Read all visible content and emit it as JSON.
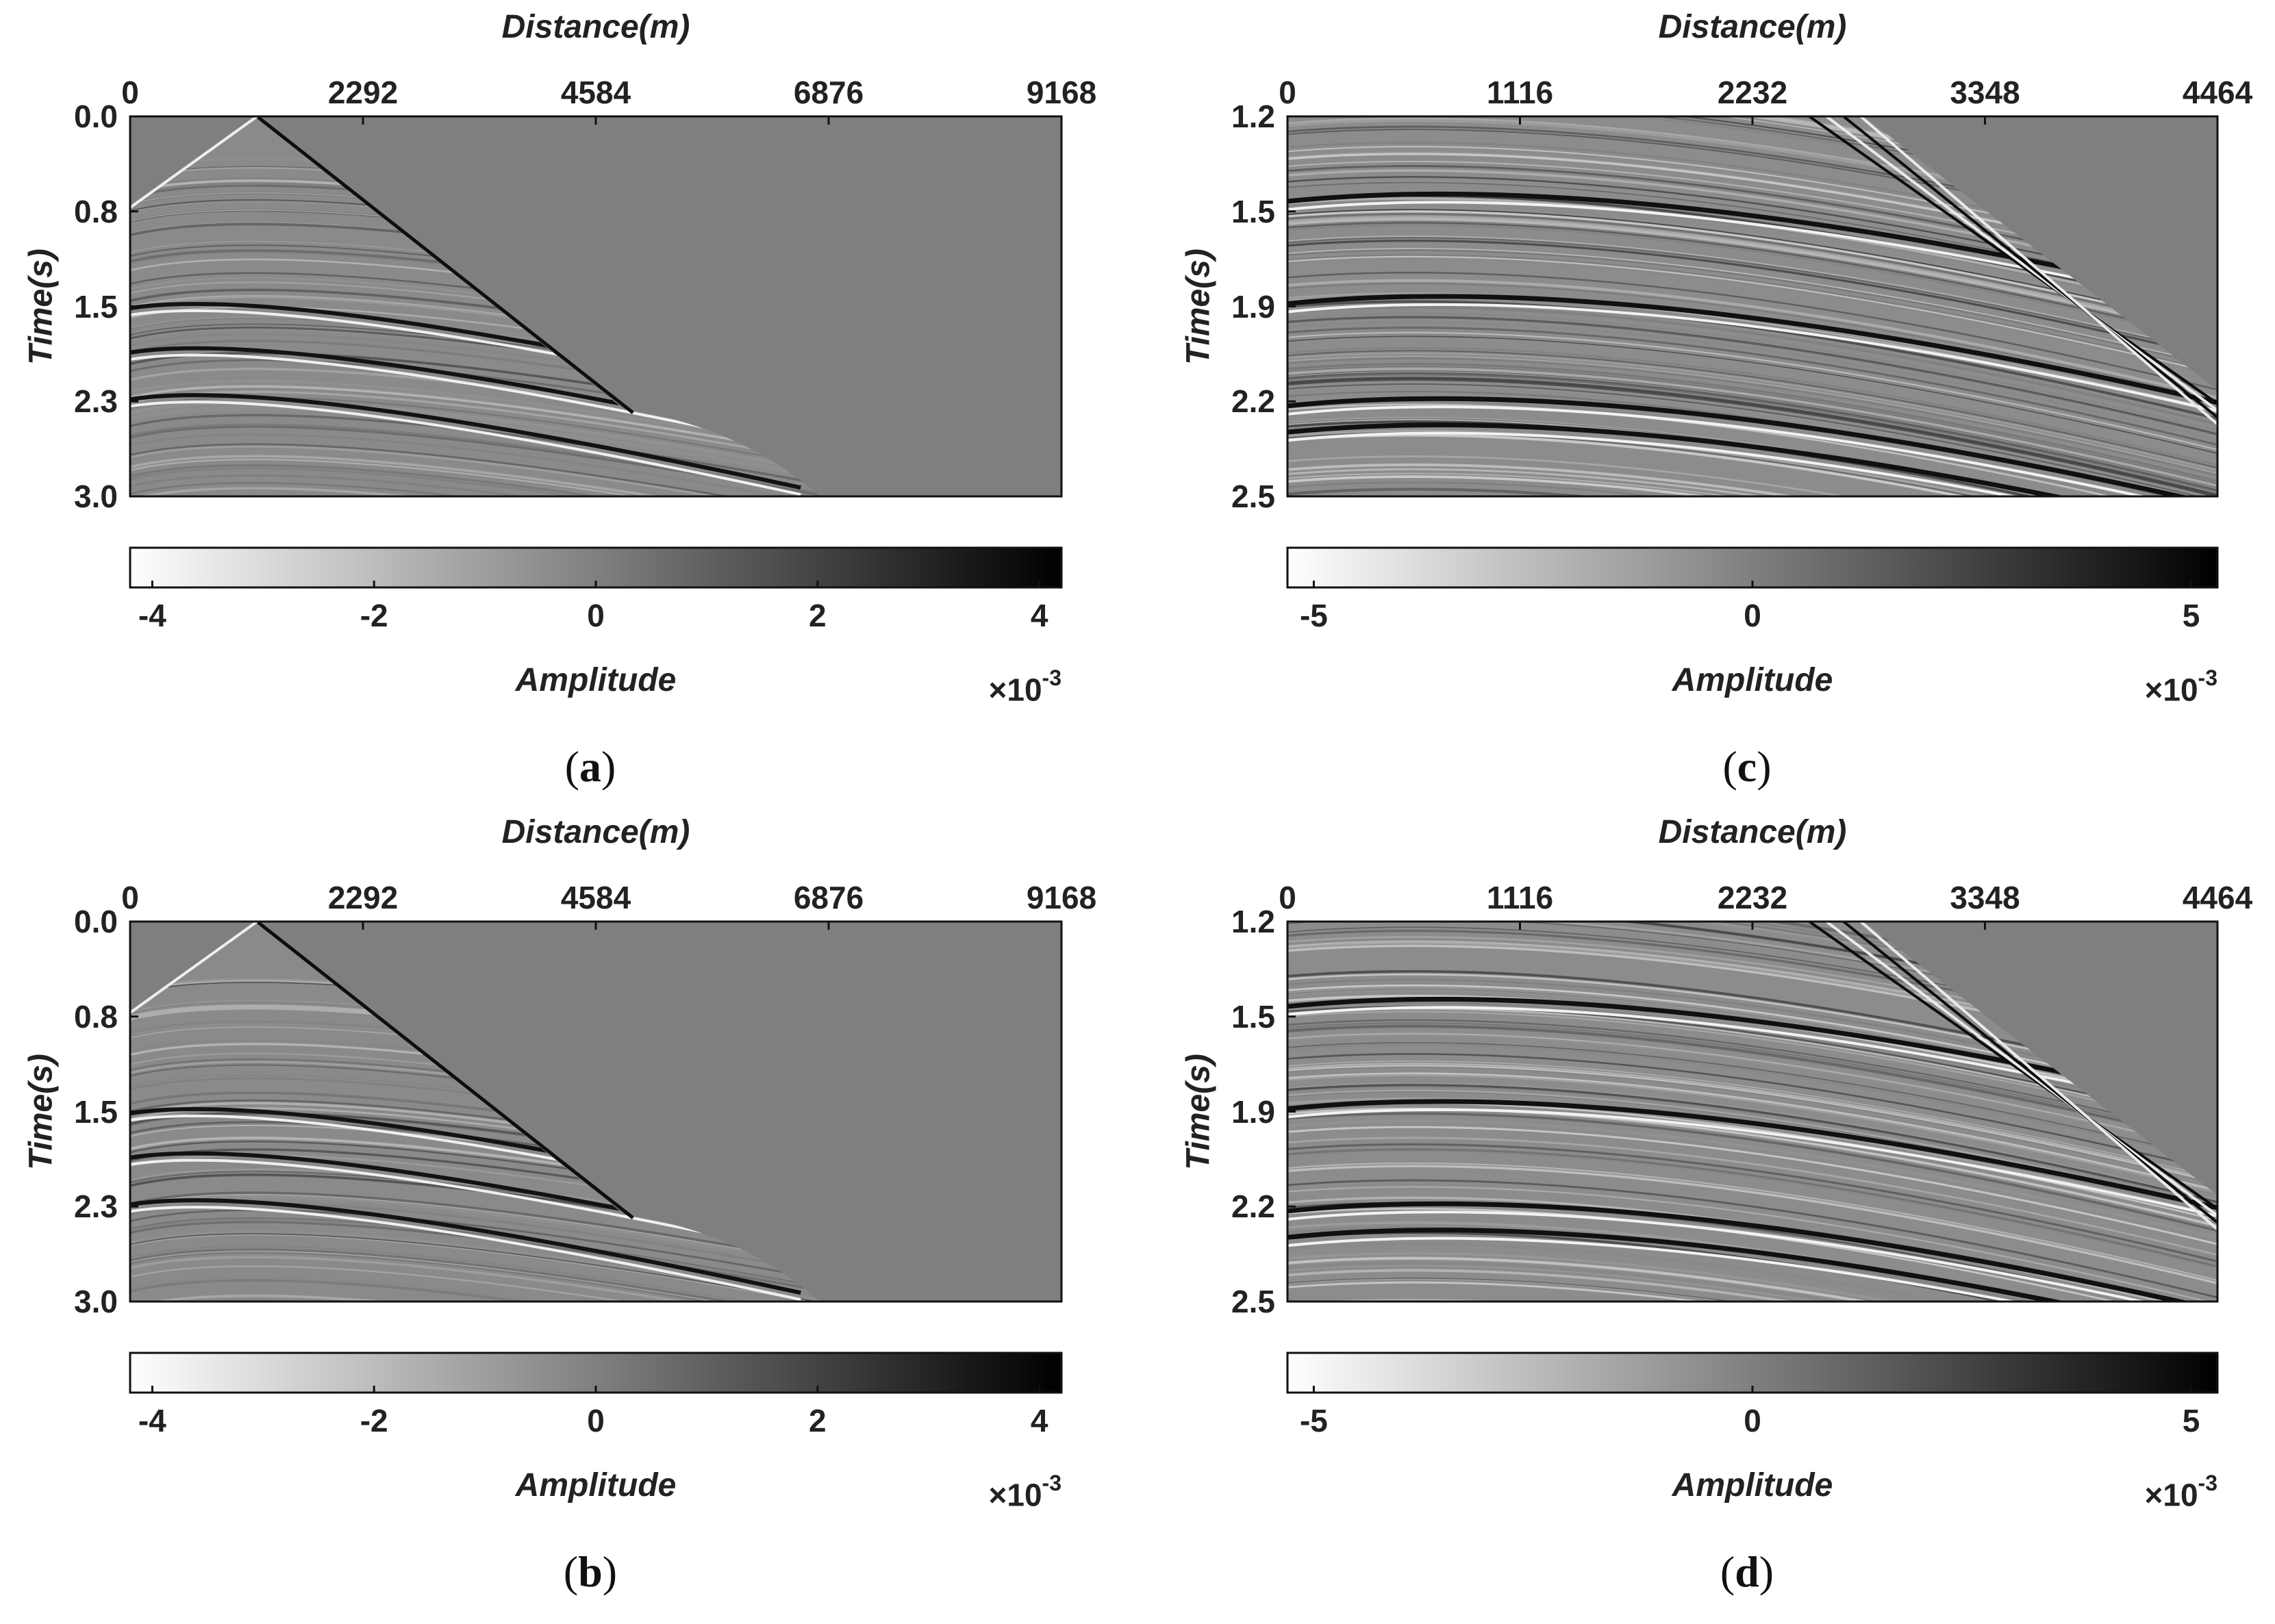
{
  "chart_data": [
    {
      "panel": "a",
      "type": "heatmap",
      "xlabel": "Distance(m)",
      "ylabel": "Time(s)",
      "xlim": [
        0,
        9168
      ],
      "ylim": [
        0.0,
        3.0
      ],
      "xticks": [
        "0",
        "2292",
        "4584",
        "6876",
        "9168"
      ],
      "yticks": [
        "0.0",
        "0.8",
        "1.5",
        "2.3",
        "3.0"
      ],
      "colorbar": {
        "label": "Amplitude",
        "range": [
          -4.2,
          4.2
        ],
        "ticks": [
          "-4",
          "-2",
          "0",
          "2",
          "4"
        ],
        "tick_values": [
          -4,
          -2,
          0,
          2,
          4
        ],
        "scale_base": "×10",
        "scale_exp": "-3"
      },
      "caption": "a",
      "apex_distance": 1250,
      "reflectors": [
        {
          "t0": 1.4,
          "strength": 1.0
        },
        {
          "t0": 1.75,
          "strength": 1.0
        },
        {
          "t0": 2.12,
          "strength": 0.9
        }
      ]
    },
    {
      "panel": "b",
      "type": "heatmap",
      "xlabel": "Distance(m)",
      "ylabel": "Time(s)",
      "xlim": [
        0,
        9168
      ],
      "ylim": [
        0.0,
        3.0
      ],
      "xticks": [
        "0",
        "2292",
        "4584",
        "6876",
        "9168"
      ],
      "yticks": [
        "0.0",
        "0.8",
        "1.5",
        "2.3",
        "3.0"
      ],
      "colorbar": {
        "label": "Amplitude",
        "range": [
          -4.2,
          4.2
        ],
        "ticks": [
          "-4",
          "-2",
          "0",
          "2",
          "4"
        ],
        "tick_values": [
          -4,
          -2,
          0,
          2,
          4
        ],
        "scale_base": "×10",
        "scale_exp": "-3"
      },
      "caption": "b",
      "apex_distance": 1250,
      "reflectors": [
        {
          "t0": 1.4,
          "strength": 1.0
        },
        {
          "t0": 1.75,
          "strength": 1.0
        },
        {
          "t0": 2.12,
          "strength": 0.9
        }
      ]
    },
    {
      "panel": "c",
      "type": "heatmap",
      "xlabel": "Distance(m)",
      "ylabel": "Time(s)",
      "xlim": [
        0,
        4464
      ],
      "ylim": [
        1.2,
        2.5
      ],
      "xticks": [
        "0",
        "1116",
        "2232",
        "3348",
        "4464"
      ],
      "yticks": [
        "1.2",
        "1.5",
        "1.9",
        "2.2",
        "2.5"
      ],
      "colorbar": {
        "label": "Amplitude",
        "range": [
          -5.3,
          5.3
        ],
        "ticks": [
          "-5",
          "0",
          "5"
        ],
        "tick_values": [
          -5,
          0,
          5
        ],
        "scale_base": "×10",
        "scale_exp": "-3"
      },
      "caption": "c",
      "apex_distance": 1600,
      "reflectors": [
        {
          "t0": 1.43,
          "strength": 1.0
        },
        {
          "t0": 1.78,
          "strength": 1.0
        },
        {
          "t0": 2.13,
          "strength": 0.8
        },
        {
          "t0": 2.22,
          "strength": 1.0
        }
      ]
    },
    {
      "panel": "d",
      "type": "heatmap",
      "xlabel": "Distance(m)",
      "ylabel": "Time(s)",
      "xlim": [
        0,
        4464
      ],
      "ylim": [
        1.2,
        2.5
      ],
      "xticks": [
        "0",
        "1116",
        "2232",
        "3348",
        "4464"
      ],
      "yticks": [
        "1.2",
        "1.5",
        "1.9",
        "2.2",
        "2.5"
      ],
      "colorbar": {
        "label": "Amplitude",
        "range": [
          -5.3,
          5.3
        ],
        "ticks": [
          "-5",
          "0",
          "5"
        ],
        "tick_values": [
          -5,
          0,
          5
        ],
        "scale_base": "×10",
        "scale_exp": "-3"
      },
      "caption": "d",
      "apex_distance": 1600,
      "reflectors": [
        {
          "t0": 1.43,
          "strength": 1.0
        },
        {
          "t0": 1.78,
          "strength": 1.0
        },
        {
          "t0": 2.13,
          "strength": 0.8
        },
        {
          "t0": 2.22,
          "strength": 1.0
        }
      ]
    }
  ],
  "palette": {
    "background": "#7f7f7f",
    "axis": "#111111",
    "text": "#222222"
  }
}
